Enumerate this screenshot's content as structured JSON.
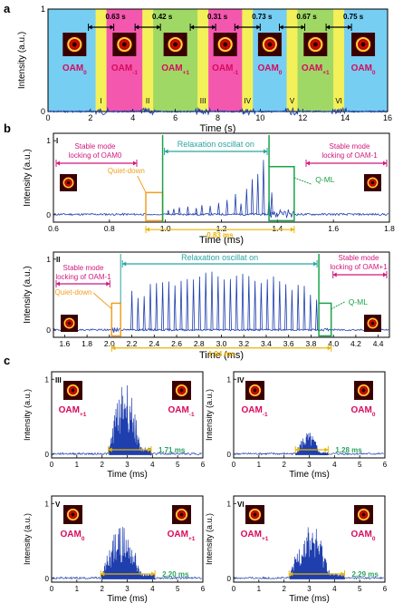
{
  "panel_labels": {
    "a": "a",
    "b": "b",
    "c": "c"
  },
  "colors": {
    "trace": "#1f3fae",
    "blue_region": "#5ec6f0",
    "yellow_region": "#f4f05a",
    "pink_region": "#f23aa0",
    "green_region": "#8fd14a",
    "magenta_text": "#d1187f",
    "teal_text": "#2aa3a3",
    "orange": "#f0a020",
    "green_box": "#1aa34a",
    "yellow_arrow": "#e8b400"
  },
  "chart_data": [
    {
      "id": "a",
      "type": "line",
      "xlabel": "Time (s)",
      "ylabel": "Intensity (a.u.)",
      "xlim": [
        0,
        16
      ],
      "ylim": [
        0,
        1
      ],
      "xticks": [
        "0",
        "2",
        "4",
        "6",
        "8",
        "10",
        "12",
        "14",
        "16"
      ],
      "yticks": [
        "0",
        "1"
      ],
      "segments": [
        {
          "start": 0,
          "end": 2.5,
          "mode": "OAM0",
          "oam_main": "OAM",
          "oam_sub": "0",
          "color": "blue"
        },
        {
          "start": 2.5,
          "end": 4.7,
          "mode": "OAM-1",
          "oam_main": "OAM",
          "oam_sub": "-1",
          "color": "pink"
        },
        {
          "start": 4.7,
          "end": 7.3,
          "mode": "OAM+1",
          "oam_main": "OAM",
          "oam_sub": "+1",
          "color": "green"
        },
        {
          "start": 7.3,
          "end": 9.4,
          "mode": "OAM-1",
          "oam_main": "OAM",
          "oam_sub": "-1",
          "color": "pink"
        },
        {
          "start": 9.4,
          "end": 11.5,
          "mode": "OAM0",
          "oam_main": "OAM",
          "oam_sub": "0",
          "color": "blue"
        },
        {
          "start": 11.5,
          "end": 13.7,
          "mode": "OAM+1",
          "oam_main": "OAM",
          "oam_sub": "+1",
          "color": "green"
        },
        {
          "start": 13.7,
          "end": 16,
          "mode": "OAM0",
          "oam_main": "OAM",
          "oam_sub": "0",
          "color": "blue"
        }
      ],
      "switch_durations": [
        {
          "at": 2.5,
          "label": "0.63 s"
        },
        {
          "at": 4.7,
          "label": "0.42 s"
        },
        {
          "at": 7.3,
          "label": "0.31 s"
        },
        {
          "at": 9.4,
          "label": "0.73 s"
        },
        {
          "at": 11.5,
          "label": "0.67 s"
        },
        {
          "at": 13.7,
          "label": "0.75 s"
        }
      ],
      "transition_numerals": [
        {
          "at": 2.5,
          "label": "I"
        },
        {
          "at": 4.7,
          "label": "II"
        },
        {
          "at": 7.3,
          "label": "III"
        },
        {
          "at": 9.4,
          "label": "IV"
        },
        {
          "at": 11.5,
          "label": "V"
        },
        {
          "at": 13.7,
          "label": "VI"
        }
      ],
      "baseline_level": 0.0
    },
    {
      "id": "b1",
      "type": "line",
      "roman": "I",
      "xlabel": "Time (ms)",
      "ylabel": "Intensity (a.u.)",
      "xlim": [
        0.6,
        1.8
      ],
      "ylim": [
        -0.1,
        1.1
      ],
      "xticks": [
        "0.6",
        "0.8",
        "1.0",
        "1.2",
        "1.4",
        "1.6",
        "1.8"
      ],
      "yticks": [
        "0",
        "1"
      ],
      "left_annotation": [
        "Stable mode",
        "locking of OAM0"
      ],
      "right_annotation": [
        "Stable mode",
        "locking of OAM-1"
      ],
      "middle_annotation": "Relaxation oscillat on",
      "quietdown_label": "Quiet-down",
      "qml_label": "Q-ML",
      "duration_label": "0.83 ms",
      "quietdown_box": [
        0.93,
        0.99
      ],
      "qml_box": [
        1.37,
        1.46
      ],
      "spikes": [
        {
          "t": 1.01,
          "h": 0.06
        },
        {
          "t": 1.03,
          "h": 0.08
        },
        {
          "t": 1.05,
          "h": 0.1
        },
        {
          "t": 1.08,
          "h": 0.11
        },
        {
          "t": 1.11,
          "h": 0.09
        },
        {
          "t": 1.13,
          "h": 0.13
        },
        {
          "t": 1.16,
          "h": 0.12
        },
        {
          "t": 1.19,
          "h": 0.16
        },
        {
          "t": 1.22,
          "h": 0.2
        },
        {
          "t": 1.25,
          "h": 0.28
        },
        {
          "t": 1.27,
          "h": 0.15
        },
        {
          "t": 1.29,
          "h": 0.35
        },
        {
          "t": 1.31,
          "h": 0.48
        },
        {
          "t": 1.33,
          "h": 0.55
        },
        {
          "t": 1.35,
          "h": 0.74
        },
        {
          "t": 1.37,
          "h": 0.22
        },
        {
          "t": 1.38,
          "h": 0.3
        }
      ]
    },
    {
      "id": "b2",
      "type": "line",
      "roman": "II",
      "xlabel": "Time (ms)",
      "ylabel": "Intensity (a.u.)",
      "xlim": [
        1.5,
        4.5
      ],
      "ylim": [
        -0.1,
        1.1
      ],
      "xticks": [
        "1.6",
        "1.8",
        "2.0",
        "2.2",
        "2.4",
        "2.6",
        "2.8",
        "3.0",
        "3.2",
        "3.4",
        "3.6",
        "3.8",
        "4.0",
        "4.2",
        "4.4"
      ],
      "yticks": [
        "0",
        "1"
      ],
      "left_annotation": [
        "Stable mode",
        "locking of OAM-1"
      ],
      "right_annotation": [
        "Stable mode",
        "locking of OAM+1"
      ],
      "middle_annotation": "Relaxation oscillat on",
      "quietdown_label": "Quiet-down",
      "qml_label": "Q-ML",
      "duration_label": "1.94 ms",
      "quietdown_box": [
        2.02,
        2.1
      ],
      "qml_box": [
        3.87,
        3.98
      ],
      "spike_start": 2.2,
      "spike_end": 3.85,
      "spike_count": 31
    },
    {
      "id": "c1",
      "type": "line",
      "roman": "III",
      "xlabel": "Time (ms)",
      "ylabel": "Intensity (a.u.)",
      "xlim": [
        0,
        6
      ],
      "ylim": [
        -0.05,
        1.1
      ],
      "xticks": [
        "0",
        "1",
        "2",
        "3",
        "4",
        "5",
        "6"
      ],
      "yticks": [
        "0",
        "1"
      ],
      "left_oam": {
        "main": "OAM",
        "sub": "+1"
      },
      "right_oam": {
        "main": "OAM",
        "sub": "-1"
      },
      "burst": [
        2.25,
        3.95
      ],
      "burst_peak": 1.0,
      "duration_label": "1.71 ms"
    },
    {
      "id": "c2",
      "type": "line",
      "roman": "IV",
      "xlabel": "Time (ms)",
      "ylabel": "Intensity (a.u.)",
      "xlim": [
        0,
        6
      ],
      "ylim": [
        -0.05,
        1.1
      ],
      "xticks": [
        "0",
        "1",
        "2",
        "3",
        "4",
        "5",
        "6"
      ],
      "yticks": [
        "0",
        "1"
      ],
      "left_oam": {
        "main": "OAM",
        "sub": "-1"
      },
      "right_oam": {
        "main": "OAM",
        "sub": "0"
      },
      "burst": [
        2.45,
        3.75
      ],
      "burst_peak": 0.3,
      "duration_label": "1.28 ms"
    },
    {
      "id": "c3",
      "type": "line",
      "roman": "V",
      "xlabel": "Time (ms)",
      "ylabel": "Intensity (a.u.)",
      "xlim": [
        0,
        6
      ],
      "ylim": [
        -0.05,
        1.1
      ],
      "xticks": [
        "0",
        "1",
        "2",
        "3",
        "4",
        "5",
        "6"
      ],
      "yticks": [
        "0",
        "1"
      ],
      "left_oam": {
        "main": "OAM",
        "sub": "0"
      },
      "right_oam": {
        "main": "OAM",
        "sub": "+1"
      },
      "burst": [
        1.95,
        4.1
      ],
      "burst_peak": 0.7,
      "duration_label": "2.20 ms"
    },
    {
      "id": "c4",
      "type": "line",
      "roman": "VI",
      "xlabel": "Time (ms)",
      "ylabel": "Intensity (a.u.)",
      "xlim": [
        0,
        6
      ],
      "ylim": [
        -0.05,
        1.1
      ],
      "xticks": [
        "0",
        "1",
        "2",
        "3",
        "4",
        "5",
        "6"
      ],
      "yticks": [
        "0",
        "1"
      ],
      "left_oam": {
        "main": "OAM",
        "sub": "+1"
      },
      "right_oam": {
        "main": "OAM",
        "sub": "0"
      },
      "burst": [
        2.2,
        4.4
      ],
      "burst_peak": 0.75,
      "duration_label": "2.29 ms"
    }
  ]
}
